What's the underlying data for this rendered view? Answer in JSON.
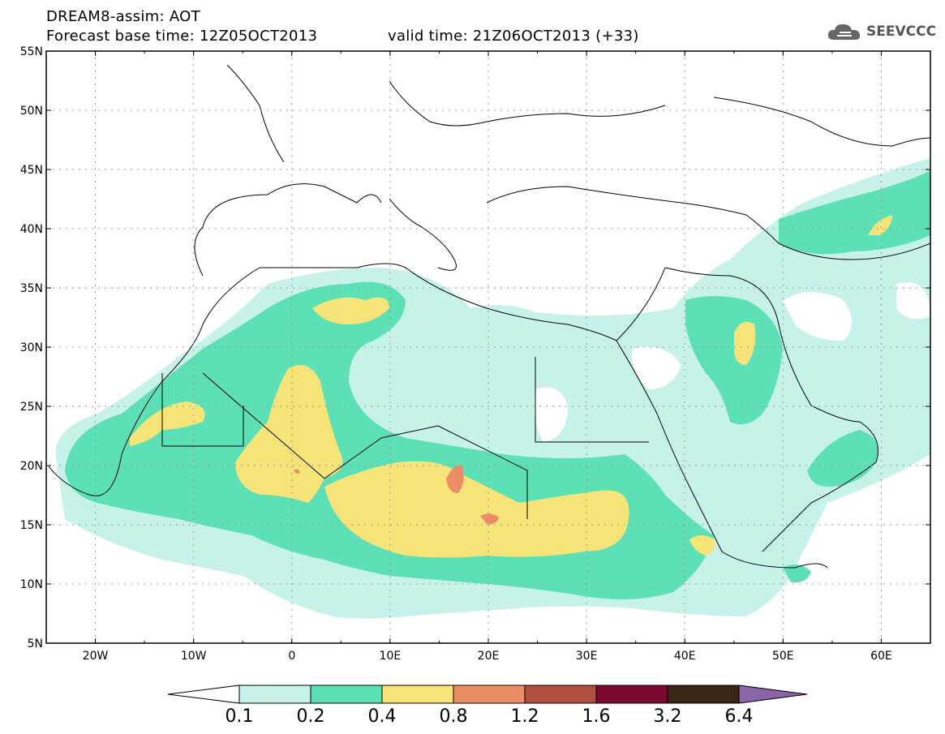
{
  "header": {
    "model_title": "DREAM8-assim: AOT",
    "base_time": "Forecast base time: 12Z05OCT2013",
    "valid_time": "valid time: 21Z06OCT2013 (+33)",
    "logo_text": "SEEVCCC"
  },
  "map": {
    "lat_labels": [
      "55N",
      "50N",
      "45N",
      "40N",
      "35N",
      "30N",
      "25N",
      "20N",
      "15N",
      "10N",
      "5N"
    ],
    "lon_labels": [
      "20W",
      "10W",
      "0",
      "10E",
      "20E",
      "30E",
      "40E",
      "50E",
      "60E"
    ],
    "lat_range": [
      5,
      55
    ],
    "lon_range": [
      -25,
      65
    ]
  },
  "colorbar": {
    "ticks": [
      "0.1",
      "0.2",
      "0.4",
      "0.8",
      "1.2",
      "1.6",
      "3.2",
      "6.4"
    ],
    "colors": [
      "#c6f2ea",
      "#5ee0b6",
      "#f7e479",
      "#eb8e67",
      "#b04f3f",
      "#7a0a2e",
      "#3a2616",
      "#8a64a8"
    ]
  }
}
